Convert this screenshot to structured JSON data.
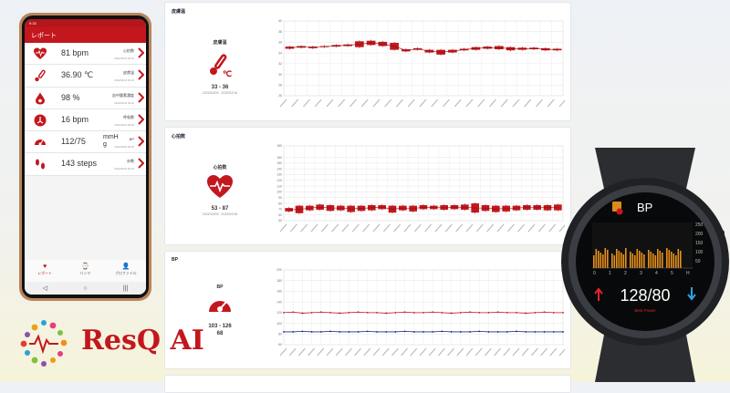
{
  "phone": {
    "status_time": "9:33",
    "title": "レポート",
    "metrics": [
      {
        "value": "81  bpm",
        "label": "心拍数",
        "date": "2022/02/16 09:32",
        "icon": "heart-pulse-icon"
      },
      {
        "value": "36.90  ℃",
        "label": "皮膚温",
        "date": "2022/02/16 09:32",
        "icon": "thermometer-icon"
      },
      {
        "value": "98  %",
        "label": "血中酸素濃度",
        "date": "2022/02/16 09:32",
        "icon": "blood-drop-icon"
      },
      {
        "value": "16  bpm",
        "label": "呼吸数",
        "date": "2022/02/16 09:32",
        "icon": "lungs-icon"
      },
      {
        "value": "112/75",
        "value_unit": "mmH g",
        "label": "BP",
        "date": "2022/02/16 09:32",
        "icon": "gauge-icon"
      },
      {
        "value": "143  steps",
        "label": "歩数",
        "date": "2022/02/16 09:32",
        "icon": "footsteps-icon"
      }
    ],
    "nav": [
      {
        "label": "レポート",
        "icon": "heart-icon",
        "active": true
      },
      {
        "label": "バンド",
        "icon": "band-icon",
        "active": false
      },
      {
        "label": "プロファイル",
        "icon": "person-icon",
        "active": false
      }
    ],
    "sysnav": [
      "◁",
      "○",
      "|||"
    ]
  },
  "panels": [
    {
      "title": "皮膚温",
      "summary_label": "皮膚温",
      "range": "33 - 36",
      "dates": "2022/02/09 - 2022/02/16",
      "y_ticks": [
        "40",
        "38",
        "36",
        "34",
        "32",
        "30",
        "28",
        "26"
      ]
    },
    {
      "title": "心拍数",
      "summary_label": "心拍数",
      "range": "53 - 87",
      "dates": "2022/02/09 - 2022/02/16",
      "y_ticks": [
        "180",
        "160",
        "150",
        "140",
        "130",
        "120",
        "110",
        "100",
        "90",
        "80",
        "70",
        "60",
        "50"
      ]
    },
    {
      "title": "BP",
      "summary_label": "BP",
      "range": "103 - 126",
      "range2": "68",
      "dates": "",
      "y_ticks": [
        "200",
        "180",
        "160",
        "140",
        "120",
        "100",
        "80",
        "60"
      ]
    }
  ],
  "watch": {
    "label": "BP",
    "reading": "128/80",
    "status": "Best Power",
    "chart_ticks": [
      "250",
      "200",
      "150",
      "100",
      "50"
    ],
    "hours": [
      "0",
      "1",
      "2",
      "3",
      "4",
      "5",
      "H"
    ]
  },
  "logo": {
    "text": "ResQ AI"
  },
  "colors": {
    "brand_red": "#c3171d",
    "bp_blue": "#1f2a8a"
  },
  "chart_data": [
    {
      "type": "candlestick",
      "title": "皮膚温",
      "ylim": [
        26,
        40
      ],
      "series": [
        {
          "name": "皮膚温",
          "values": [
            [
              34.8,
              35.2
            ],
            [
              35,
              35.3
            ],
            [
              34.9,
              35.2
            ],
            [
              35.1,
              35.3
            ],
            [
              35.2,
              35.5
            ],
            [
              35.3,
              35.6
            ],
            [
              35.1,
              36.2
            ],
            [
              35.5,
              36.3
            ],
            [
              35.3,
              36.1
            ],
            [
              34.6,
              35.9
            ],
            [
              34.3,
              34.7
            ],
            [
              34.6,
              34.9
            ],
            [
              34.1,
              34.6
            ],
            [
              33.7,
              34.6
            ],
            [
              34.1,
              34.6
            ],
            [
              34.5,
              34.8
            ],
            [
              34.6,
              35.1
            ],
            [
              34.8,
              35.2
            ],
            [
              34.7,
              35.3
            ],
            [
              34.5,
              35.1
            ],
            [
              34.6,
              35
            ],
            [
              34.7,
              35
            ],
            [
              34.5,
              34.9
            ],
            [
              34.5,
              34.8
            ]
          ]
        }
      ]
    },
    {
      "type": "candlestick",
      "title": "心拍数",
      "ylim": [
        50,
        180
      ],
      "series": [
        {
          "name": "心拍数",
          "values": [
            [
              66,
              72
            ],
            [
              63,
              76
            ],
            [
              68,
              76
            ],
            [
              69,
              78
            ],
            [
              67,
              77
            ],
            [
              68,
              76
            ],
            [
              65,
              76
            ],
            [
              67,
              76
            ],
            [
              68,
              77
            ],
            [
              70,
              77
            ],
            [
              64,
              76
            ],
            [
              68,
              76
            ],
            [
              66,
              76
            ],
            [
              70,
              77
            ],
            [
              70,
              76
            ],
            [
              69,
              77
            ],
            [
              70,
              77
            ],
            [
              69,
              78
            ],
            [
              64,
              80
            ],
            [
              67,
              77
            ],
            [
              65,
              76
            ],
            [
              66,
              76
            ],
            [
              68,
              76
            ],
            [
              69,
              77
            ],
            [
              69,
              77
            ],
            [
              68,
              77
            ],
            [
              68,
              78
            ]
          ]
        }
      ]
    },
    {
      "type": "line",
      "title": "BP",
      "ylim": [
        60,
        200
      ],
      "series": [
        {
          "name": "SYS",
          "values": [
            120,
            121,
            119,
            120,
            121,
            120,
            119,
            120,
            121,
            120,
            120,
            119,
            120,
            121,
            120,
            120,
            121,
            120,
            119,
            120,
            121,
            120,
            120,
            121,
            120,
            120,
            119,
            120,
            121,
            120,
            120
          ]
        },
        {
          "name": "DIA",
          "values": [
            84,
            84,
            85,
            84,
            84,
            85,
            84,
            84,
            84,
            85,
            84,
            84,
            84,
            85,
            84,
            84,
            84,
            85,
            84,
            84,
            84,
            85,
            84,
            84,
            84,
            85,
            84,
            84,
            84,
            84,
            84
          ]
        }
      ]
    }
  ]
}
